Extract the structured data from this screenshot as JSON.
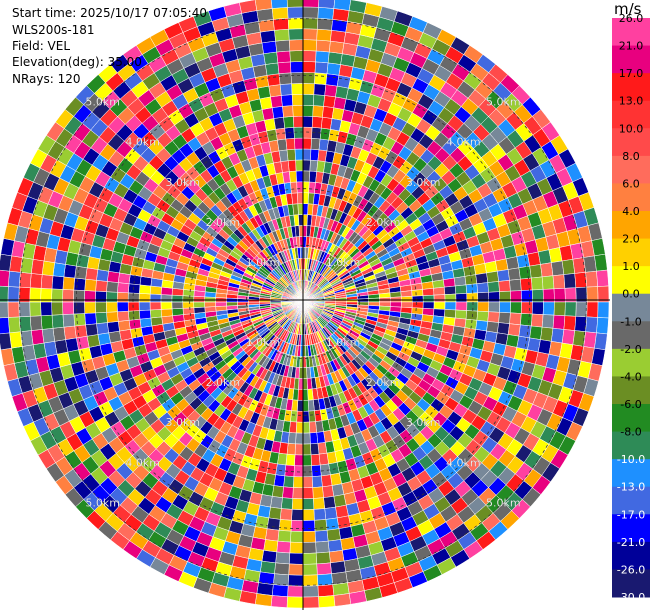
{
  "header": {
    "start_time": "Start time: 2025/10/17 07:05:40",
    "instrument": "WLS200s-181",
    "field": "Field: VEL",
    "elevation": "Elevation(deg): 35.00",
    "nrays": "NRays: 120"
  },
  "chart_data": {
    "type": "heatmap",
    "projection": "polar-ppi",
    "field": "VEL",
    "units": "m/s",
    "n_rays": 120,
    "n_range_gates": 28,
    "range_rings": [
      "1.0km",
      "2.0km",
      "3.0km",
      "4.0km",
      "5.0km"
    ],
    "max_range_km": 5.4,
    "colorbar": {
      "title": "m/s",
      "ticks": [
        "26.0",
        "21.0",
        "17.0",
        "13.0",
        "10.0",
        "8.0",
        "6.0",
        "4.0",
        "2.0",
        "1.0",
        "0.0",
        "-1.0",
        "-2.0",
        "-4.0",
        "-6.0",
        "-8.0",
        "-10.0",
        "-13.0",
        "-17.0",
        "-21.0",
        "-26.0",
        "-30.0"
      ],
      "bins": [
        {
          "color": "#ff40a0"
        },
        {
          "color": "#e8007f"
        },
        {
          "color": "#ff1a1a"
        },
        {
          "color": "#ff3333"
        },
        {
          "color": "#ff4a4a"
        },
        {
          "color": "#ff6c5c"
        },
        {
          "color": "#ff8040"
        },
        {
          "color": "#ffa500"
        },
        {
          "color": "#ffd000"
        },
        {
          "color": "#ffff00"
        },
        {
          "color": "#778899"
        },
        {
          "color": "#696969"
        },
        {
          "color": "#9acd32"
        },
        {
          "color": "#6b8e23"
        },
        {
          "color": "#228b22"
        },
        {
          "color": "#2e8b57"
        },
        {
          "color": "#1e90ff"
        },
        {
          "color": "#4169e1"
        },
        {
          "color": "#0000ff"
        },
        {
          "color": "#000099"
        },
        {
          "color": "#191970"
        }
      ]
    }
  }
}
